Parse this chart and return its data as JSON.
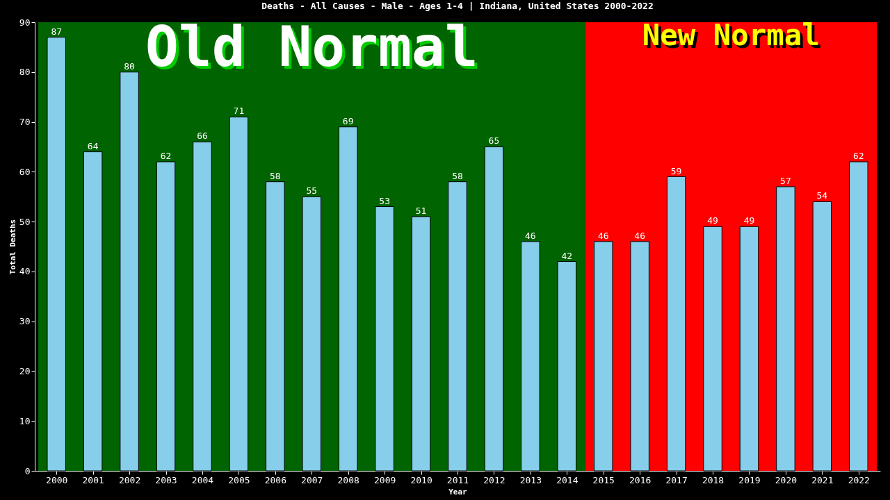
{
  "chart_data": {
    "type": "bar",
    "title": "Deaths - All Causes - Male - Ages 1-4 | Indiana, United States 2000-2022",
    "xlabel": "Year",
    "ylabel": "Total Deaths",
    "categories": [
      "2000",
      "2001",
      "2002",
      "2003",
      "2004",
      "2005",
      "2006",
      "2007",
      "2008",
      "2009",
      "2010",
      "2011",
      "2012",
      "2013",
      "2014",
      "2015",
      "2016",
      "2017",
      "2018",
      "2019",
      "2020",
      "2021",
      "2022"
    ],
    "values": [
      87,
      64,
      80,
      62,
      66,
      71,
      58,
      55,
      69,
      53,
      51,
      58,
      65,
      46,
      42,
      46,
      46,
      59,
      49,
      49,
      57,
      54,
      62
    ],
    "color": "#87ceeb",
    "ylim": [
      0,
      90
    ],
    "yticks": [
      0,
      10,
      20,
      30,
      40,
      50,
      60,
      70,
      80,
      90
    ],
    "grid": false,
    "data_labels": true,
    "bands": [
      {
        "axis": "x",
        "from": "2000",
        "to": "2014",
        "label": "Old Normal",
        "color": "#006400"
      },
      {
        "axis": "x",
        "from": "2015",
        "to": "2022",
        "label": "New Normal",
        "color": "#ff0000"
      }
    ]
  }
}
